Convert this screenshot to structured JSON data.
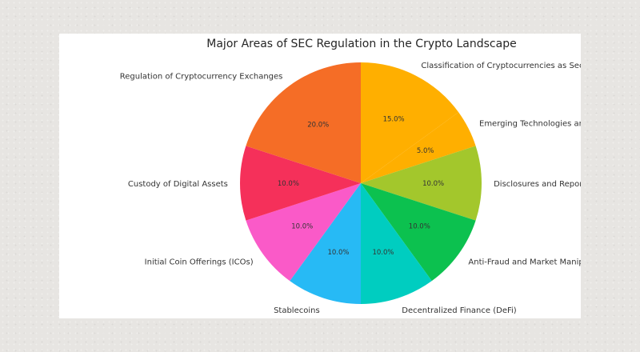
{
  "chart_data": {
    "type": "pie",
    "title": "Major Areas of SEC Regulation in the Crypto Landscape",
    "start_angle_deg": 270,
    "direction": "clockwise",
    "slices": [
      {
        "label": "Classification of Cryptocurrencies as Securities",
        "value": 15,
        "pct_label": "15.0%",
        "color": "#ffaf00"
      },
      {
        "label": "Emerging Technologies and Innovations",
        "value": 5,
        "pct_label": "5.0%",
        "color": "#ffaf00"
      },
      {
        "label": "Disclosures and Reporting",
        "value": 10,
        "pct_label": "10.0%",
        "color": "#a3c72c"
      },
      {
        "label": "Anti-Fraud and Market Manipulation",
        "value": 10,
        "pct_label": "10.0%",
        "color": "#0cc14f"
      },
      {
        "label": "Decentralized Finance (DeFi)",
        "value": 10,
        "pct_label": "10.0%",
        "color": "#00cdc0"
      },
      {
        "label": "Stablecoins",
        "value": 10,
        "pct_label": "10.0%",
        "color": "#27baf5"
      },
      {
        "label": "Initial Coin Offerings (ICOs)",
        "value": 10,
        "pct_label": "10.0%",
        "color": "#fa5ac8"
      },
      {
        "label": "Custody of Digital Assets",
        "value": 10,
        "pct_label": "10.0%",
        "color": "#f5305a"
      },
      {
        "label": "Regulation of Cryptocurrency Exchanges",
        "value": 20,
        "pct_label": "20.0%",
        "color": "#f56d26"
      }
    ]
  }
}
